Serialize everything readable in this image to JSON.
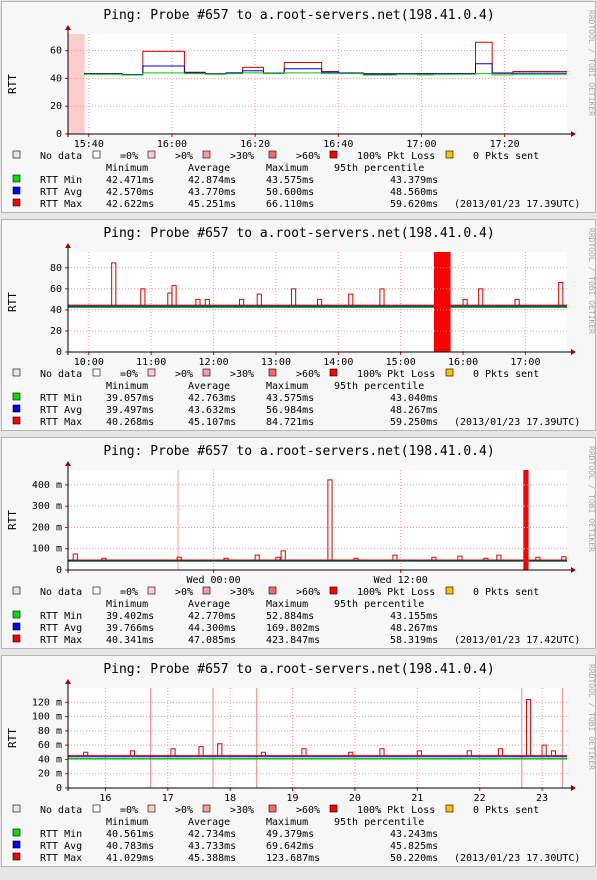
{
  "side_label": "RRDTOOL / TOBI OETIKER",
  "legend": {
    "items": [
      {
        "label": "No data",
        "color": "#e6e6e6"
      },
      {
        "label": "=0%",
        "color": "#ffffff"
      },
      {
        "label": ">0%",
        "color": "#ffcccc"
      },
      {
        "label": ">30%",
        "color": "#ff9999"
      },
      {
        "label": ">60%",
        "color": "#ff6666"
      },
      {
        "label": "100% Pkt Loss",
        "color": "#ff0000"
      },
      {
        "label": "0 Pkts sent",
        "color": "#ffc000"
      }
    ],
    "headers": [
      "Minimum",
      "Average",
      "Maximum",
      "95th percentile"
    ],
    "row_labels": [
      "RTT Min",
      "RTT Avg",
      "RTT Max"
    ],
    "row_colors": [
      "#00e000",
      "#0000ff",
      "#ff0000"
    ]
  },
  "colors": {
    "min": "#00c800",
    "avg": "#0000dc",
    "max": "#dc0000",
    "loss": "#ff0000",
    "partial": "#ffcccc",
    "grid": "#ff9a9a"
  },
  "chart_data": [
    {
      "type": "line",
      "title": "Ping: Probe #657 to a.root-servers.net(198.41.0.4)",
      "ylabel": "RTT",
      "ylim": [
        0,
        72
      ],
      "xlim": [
        0,
        120
      ],
      "yticks": [
        0,
        20,
        40,
        60
      ],
      "ytick_labels": [
        "0",
        "20",
        "40",
        "60"
      ],
      "xticks": [
        5,
        25,
        45,
        65,
        85,
        105
      ],
      "xtick_labels": [
        "15:40",
        "16:00",
        "16:20",
        "16:40",
        "17:00",
        "17:20"
      ],
      "loss_bands": [],
      "partial_bands": [
        [
          0,
          4
        ]
      ],
      "steps": [
        [
          4,
          42.5,
          42.7,
          42.8
        ],
        [
          13,
          43.0,
          43.5,
          43.6
        ],
        [
          18,
          42.5,
          42.8,
          42.7
        ],
        [
          28,
          44.0,
          49.0,
          59.5
        ],
        [
          33,
          43.5,
          44.0,
          44.5
        ],
        [
          38,
          43.0,
          43.3,
          43.5
        ],
        [
          42,
          43.5,
          44.0,
          44.0
        ],
        [
          47,
          44.0,
          45.5,
          48.0
        ],
        [
          52,
          43.5,
          43.7,
          43.8
        ],
        [
          61,
          44.0,
          47.0,
          51.5
        ],
        [
          65,
          43.5,
          44.5,
          45.0
        ],
        [
          71,
          43.5,
          43.8,
          44.0
        ],
        [
          79,
          42.5,
          43.2,
          43.5
        ],
        [
          84,
          43.0,
          43.5,
          43.5
        ],
        [
          88,
          42.6,
          43.4,
          43.5
        ],
        [
          98,
          43.0,
          43.6,
          43.5
        ],
        [
          102,
          43.5,
          50.6,
          66.1
        ],
        [
          107,
          42.6,
          43.7,
          44.0
        ],
        [
          116,
          43.0,
          43.8,
          45.0
        ],
        [
          120,
          43.0,
          43.8,
          45.0
        ]
      ],
      "stats": {
        "min": [
          "42.471ms",
          "42.874ms",
          "43.575ms",
          "43.379ms"
        ],
        "avg": [
          "42.570ms",
          "43.770ms",
          "50.600ms",
          "48.560ms"
        ],
        "max": [
          "42.622ms",
          "45.251ms",
          "66.110ms",
          "59.620ms"
        ]
      },
      "timestamp": "(2013/01/23 17.39UTC)"
    },
    {
      "type": "line",
      "title": "Ping: Probe #657 to a.root-servers.net(198.41.0.4)",
      "ylabel": "RTT",
      "ylim": [
        0,
        95
      ],
      "xlim": [
        0,
        480
      ],
      "yticks": [
        0,
        20,
        40,
        60,
        80
      ],
      "ytick_labels": [
        "0",
        "20",
        "40",
        "60",
        "80"
      ],
      "xticks": [
        20,
        80,
        140,
        200,
        260,
        320,
        380,
        440
      ],
      "xtick_labels": [
        "10:00",
        "11:00",
        "12:00",
        "13:00",
        "14:00",
        "15:00",
        "16:00",
        "17:00"
      ],
      "loss_bands": [
        [
          352,
          368
        ]
      ],
      "partial_bands": [],
      "spikes": [
        [
          42,
          84.7
        ],
        [
          70,
          60
        ],
        [
          96,
          56
        ],
        [
          100,
          63
        ],
        [
          123,
          50
        ],
        [
          132,
          50
        ],
        [
          165,
          50
        ],
        [
          182,
          55
        ],
        [
          215,
          60
        ],
        [
          240,
          50
        ],
        [
          270,
          55
        ],
        [
          300,
          60
        ],
        [
          380,
          50
        ],
        [
          395,
          60
        ],
        [
          430,
          50
        ],
        [
          472,
          66
        ]
      ],
      "base": [
        42.5,
        43.6,
        44.5
      ],
      "stats": {
        "min": [
          "39.057ms",
          "42.763ms",
          "43.575ms",
          "43.040ms"
        ],
        "avg": [
          "39.497ms",
          "43.632ms",
          "56.984ms",
          "48.267ms"
        ],
        "max": [
          "40.268ms",
          "45.107ms",
          "84.721ms",
          "59.250ms"
        ]
      },
      "timestamp": "(2013/01/23 17.39UTC)"
    },
    {
      "type": "line",
      "title": "Ping: Probe #657 to a.root-servers.net(198.41.0.4)",
      "ylabel": "RTT",
      "ylim": [
        0,
        470
      ],
      "xlim": [
        0,
        1920
      ],
      "yticks": [
        0,
        100,
        200,
        300,
        400
      ],
      "ytick_labels": [
        "0",
        "100 m",
        "200 m",
        "300 m",
        "400 m"
      ],
      "xticks": [
        560,
        1280
      ],
      "xtick_labels": [
        "Wed 00:00",
        "Wed 12:00"
      ],
      "loss_bands": [
        [
          1752,
          1772
        ]
      ],
      "partial_bands": [
        [
          420,
          428
        ]
      ],
      "spikes": [
        [
          20,
          75
        ],
        [
          130,
          55
        ],
        [
          420,
          60
        ],
        [
          600,
          55
        ],
        [
          720,
          70
        ],
        [
          800,
          60
        ],
        [
          820,
          90
        ],
        [
          1000,
          423.8
        ],
        [
          1100,
          55
        ],
        [
          1250,
          70
        ],
        [
          1400,
          60
        ],
        [
          1500,
          65
        ],
        [
          1600,
          55
        ],
        [
          1650,
          70
        ],
        [
          1800,
          60
        ],
        [
          1900,
          62
        ]
      ],
      "base": [
        42,
        44.3,
        47
      ],
      "stats": {
        "min": [
          "39.402ms",
          "42.770ms",
          "52.884ms",
          "43.155ms"
        ],
        "avg": [
          "39.766ms",
          "44.300ms",
          "169.802ms",
          "48.267ms"
        ],
        "max": [
          "40.341ms",
          "47.085ms",
          "423.847ms",
          "58.319ms"
        ]
      },
      "timestamp": "(2013/01/23 17.42UTC)"
    },
    {
      "type": "line",
      "title": "Ping: Probe #657 to a.root-servers.net(198.41.0.4)",
      "ylabel": "RTT",
      "ylim": [
        0,
        140
      ],
      "xlim": [
        0,
        160
      ],
      "yticks": [
        0,
        20,
        40,
        60,
        80,
        100,
        120
      ],
      "ytick_labels": [
        "0",
        "20 m",
        "40 m",
        "60 m",
        "80 m",
        "100 m",
        "120 m"
      ],
      "xticks": [
        12,
        32,
        52,
        72,
        92,
        112,
        132,
        152
      ],
      "xtick_labels": [
        "16",
        "17",
        "18",
        "19",
        "20",
        "21",
        "22",
        "23"
      ],
      "loss_bands": [],
      "partial_bands": [],
      "marker_lines": [
        26.5,
        46.5,
        60.5,
        145.5,
        158.5
      ],
      "spikes": [
        [
          5,
          50
        ],
        [
          20,
          52
        ],
        [
          33,
          55
        ],
        [
          42,
          58
        ],
        [
          48,
          62
        ],
        [
          62,
          50
        ],
        [
          75,
          55
        ],
        [
          90,
          50
        ],
        [
          100,
          55
        ],
        [
          112,
          52
        ],
        [
          128,
          52
        ],
        [
          138,
          55
        ],
        [
          147,
          123.7
        ],
        [
          152,
          60
        ],
        [
          155,
          52
        ]
      ],
      "base": [
        41,
        43.7,
        45.4
      ],
      "stats": {
        "min": [
          "40.561ms",
          "42.734ms",
          "49.379ms",
          "43.243ms"
        ],
        "avg": [
          "40.783ms",
          "43.733ms",
          "69.642ms",
          "45.825ms"
        ],
        "max": [
          "41.029ms",
          "45.388ms",
          "123.687ms",
          "50.220ms"
        ]
      },
      "timestamp": "(2013/01/23 17.30UTC)"
    }
  ]
}
